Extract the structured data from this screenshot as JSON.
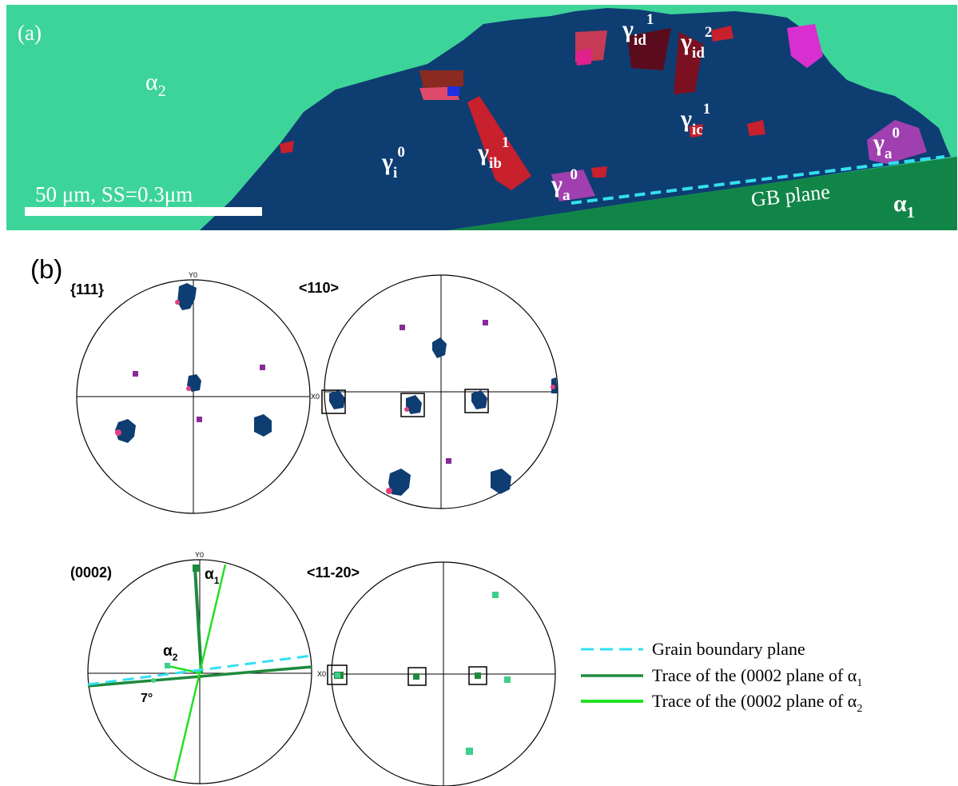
{
  "panel_a": {
    "label": "(a)",
    "scale_bar": "50 μm, SS=0.3μm",
    "gb_plane_label": "GB plane",
    "phase_labels": {
      "alpha2": {
        "base": "α",
        "sub": "2"
      },
      "alpha1": {
        "base": "α",
        "sub": "1"
      },
      "gamma_i0": {
        "base": "γ",
        "sub": "i",
        "sup": "0"
      },
      "gamma_ib1": {
        "base": "γ",
        "sub": "ib",
        "sup": "1"
      },
      "gamma_a0_left": {
        "base": "γ",
        "sub": "a",
        "sup": "0"
      },
      "gamma_a0_right": {
        "base": "γ",
        "sub": "a",
        "sup": "0"
      },
      "gamma_ic1": {
        "base": "γ",
        "sub": "ic",
        "sup": "1"
      },
      "gamma_id1": {
        "base": "γ",
        "sub": "id",
        "sup": "1"
      },
      "gamma_id2": {
        "base": "γ",
        "sub": "id",
        "sup": "2"
      }
    },
    "colors": {
      "alpha2_matrix": "#3dd49a",
      "alpha1_matrix": "#118547",
      "gamma_matrix": "#0e3d72",
      "twin_red": "#c8202c",
      "twin_pink": "#e0208c",
      "twin_magenta": "#d830d0",
      "gb_trace": "#33e0f0"
    }
  },
  "panel_b": {
    "label": "(b)",
    "pole_figures": [
      {
        "title": "{111}",
        "y_axis": "Y0",
        "x_axis": "X0"
      },
      {
        "title": "<110>"
      },
      {
        "title": "(0002)",
        "y_axis": "Y0"
      },
      {
        "title": "<11-20>",
        "x_axis": "X0"
      }
    ],
    "annotations": {
      "alpha1": {
        "base": "α",
        "sub": "1"
      },
      "alpha2": {
        "base": "α",
        "sub": "2"
      },
      "angle": "7°"
    },
    "legend": [
      {
        "text": "Grain boundary plane",
        "color": "#33e0f0",
        "dashed": true
      },
      {
        "text": "Trace of the (0002 plane of α",
        "sub": "1",
        "color": "#1e8a3c",
        "dashed": false
      },
      {
        "text": "Trace of the (0002 plane of α",
        "sub": "2",
        "color": "#22e022",
        "dashed": false
      }
    ],
    "point_colors": {
      "gamma_matrix": "#0e3d72",
      "gamma_twin": "#e04080",
      "gamma_minor": "#8a2a9a",
      "alpha1": "#1e8a3c",
      "alpha2": "#3dcf8c"
    }
  }
}
